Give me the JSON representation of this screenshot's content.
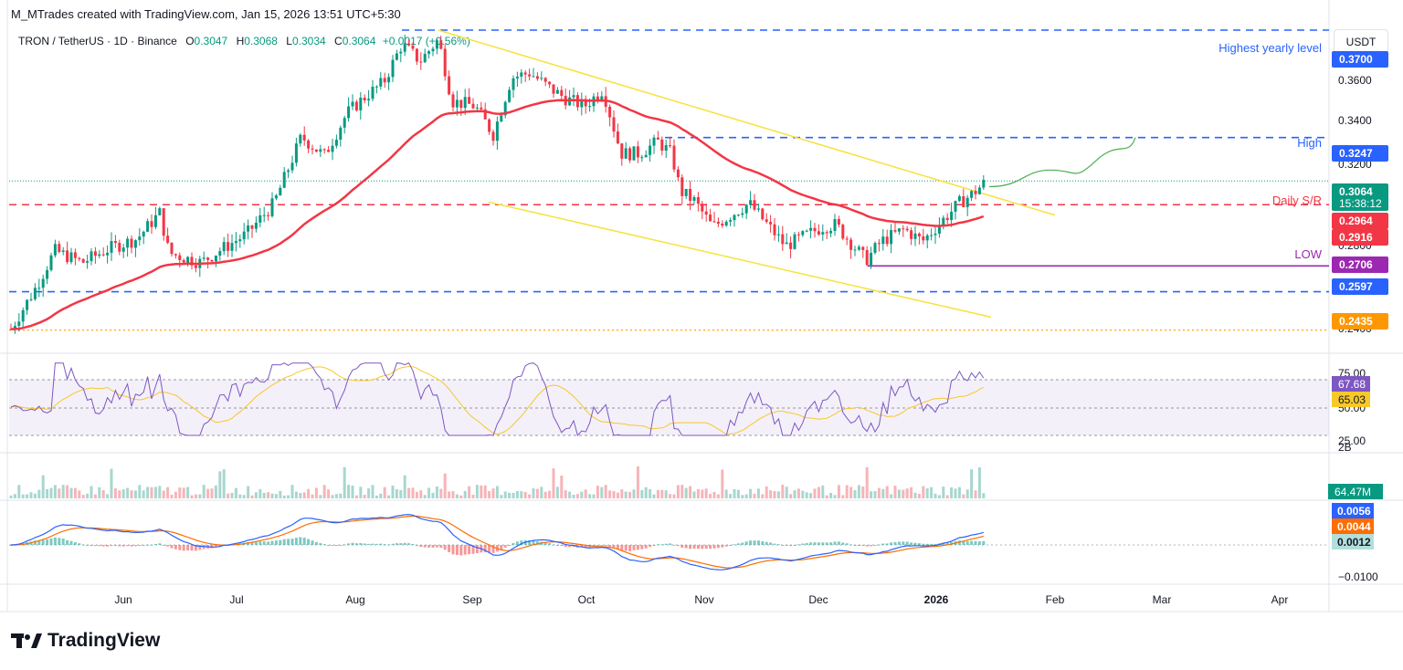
{
  "header": {
    "caption": "M_MTrades created with TradingView.com, Jan 15, 2026 13:51 UTC+5:30",
    "symbol": "TRON / TetherUS · 1D · Binance",
    "o_label": "O",
    "o_value": "0.3047",
    "h_label": "H",
    "h_value": "0.3068",
    "l_label": "L",
    "l_value": "0.3034",
    "c_label": "C",
    "c_value": "0.3064",
    "change": "+0.0017 (+0.56%)",
    "currency": "USDT"
  },
  "annotations": {
    "highest_yearly": "Highest yearly level",
    "high": "High",
    "daily_sr": "Daily S/R",
    "low": "LOW"
  },
  "price_axis": {
    "ticks": [
      "0.3600",
      "0.3400",
      "0.3200",
      "0.2800",
      "0.2400"
    ],
    "badges": [
      {
        "value": "0.3700",
        "color": "#2962ff"
      },
      {
        "value": "0.3247",
        "color": "#2962ff"
      },
      {
        "value": "0.3064",
        "color": "#089981",
        "sub": "15:38:12"
      },
      {
        "value": "0.2964",
        "color": "#f23645"
      },
      {
        "value": "0.2916",
        "color": "#f23645"
      },
      {
        "value": "0.2706",
        "color": "#9c27b0"
      },
      {
        "value": "0.2597",
        "color": "#2962ff"
      },
      {
        "value": "0.2435",
        "color": "#ff9800"
      }
    ]
  },
  "rsi_panel": {
    "ticks": [
      "75.00",
      "50.00",
      "25.00"
    ],
    "rsi_value": "67.68",
    "ma_value": "65.03",
    "rsi_color": "#7e57c2",
    "ma_color": "#f7c82a"
  },
  "volume_panel": {
    "tick": "2B",
    "value": "64.47M"
  },
  "macd_panel": {
    "macd_value": "0.0056",
    "signal_value": "0.0044",
    "hist_value": "0.0012",
    "tick": "−0.0100"
  },
  "time_axis": [
    "Jun",
    "Jul",
    "Aug",
    "Sep",
    "Oct",
    "Nov",
    "Dec",
    "2026",
    "Feb",
    "Mar",
    "Apr"
  ],
  "chart_data": {
    "type": "candlestick",
    "title": "TRON / TetherUS · 1D · Binance",
    "ylim": [
      0.238,
      0.375
    ],
    "levels": [
      {
        "name": "Highest yearly level",
        "value": 0.37,
        "style": "dashed",
        "color": "#2962ff"
      },
      {
        "name": "High",
        "value": 0.3247,
        "style": "dashed",
        "color": "#2962ff"
      },
      {
        "name": "Daily S/R",
        "value": 0.2964,
        "style": "dashed",
        "color": "#f23645"
      },
      {
        "name": "LOW",
        "value": 0.2706,
        "style": "solid",
        "color": "#9c27b0"
      },
      {
        "name": "",
        "value": 0.2597,
        "style": "dashed",
        "color": "#2962ff"
      },
      {
        "name": "",
        "value": 0.2435,
        "style": "dotted",
        "color": "#ff9800"
      }
    ],
    "last_close": 0.3064,
    "ema_last": 0.2916,
    "rsi_last": 67.68,
    "rsi_ma_last": 65.03,
    "volume_last": "64.47M",
    "macd_last": 0.0056,
    "macd_signal_last": 0.0044,
    "macd_hist_last": 0.0012
  }
}
